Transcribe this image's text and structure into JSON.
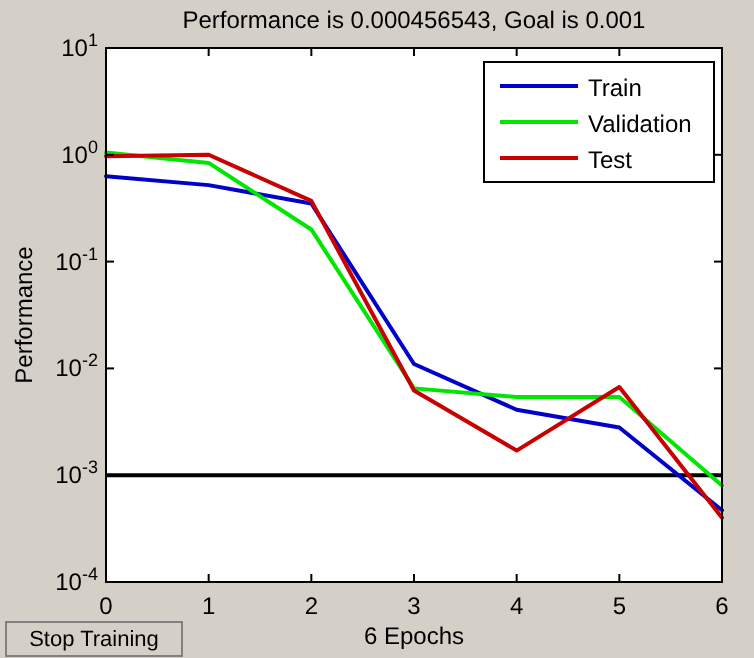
{
  "chart_data": {
    "type": "line",
    "title": "Performance is 0.000456543, Goal is 0.001",
    "xlabel": "6 Epochs",
    "ylabel": "Performance",
    "x": [
      0,
      1,
      2,
      3,
      4,
      5,
      6
    ],
    "series": [
      {
        "name": "Train",
        "color": "#0000c8",
        "values": [
          0.63,
          0.52,
          0.35,
          0.011,
          0.0041,
          0.0028,
          0.00047
        ]
      },
      {
        "name": "Validation",
        "color": "#00e600",
        "values": [
          1.05,
          0.84,
          0.2,
          0.0065,
          0.0054,
          0.0054,
          0.0008
        ]
      },
      {
        "name": "Test",
        "color": "#c80000",
        "values": [
          0.97,
          1.0,
          0.37,
          0.0062,
          0.0017,
          0.0067,
          0.0004
        ]
      }
    ],
    "log": "y",
    "xlim": [
      0,
      6
    ],
    "xticks": [
      0,
      1,
      2,
      3,
      4,
      5,
      6
    ],
    "ylim": [
      0.0001,
      10
    ],
    "yticks": [
      {
        "value": 0.0001,
        "label": "10$^{-4}$"
      },
      {
        "value": 0.001,
        "label": "10$^{-3}$"
      },
      {
        "value": 0.01,
        "label": "10$^{-2}$"
      },
      {
        "value": 0.1,
        "label": "10$^{-1}$"
      },
      {
        "value": 1,
        "label": "10$^{0}$"
      },
      {
        "value": 10,
        "label": "10$^{1}$"
      }
    ],
    "ref_lines": [
      {
        "axis": "y",
        "value": 0.001,
        "color": "#000000"
      }
    ],
    "legend": "top right",
    "grid": false,
    "annotations": [
      "Stop Training"
    ]
  }
}
